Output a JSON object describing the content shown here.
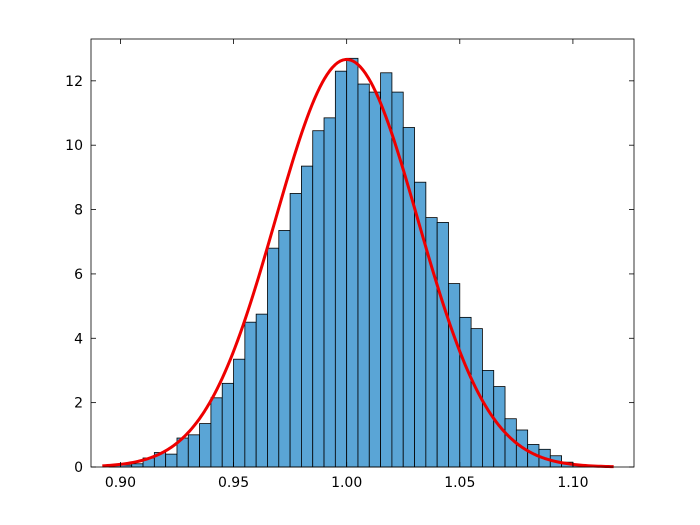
{
  "chart_data": {
    "type": "bar",
    "title": "",
    "xlabel": "",
    "ylabel": "",
    "xlim": [
      0.887,
      1.127
    ],
    "ylim": [
      0,
      13.3
    ],
    "grid": false,
    "legend": "none",
    "bin_width": 0.005,
    "bins": [
      [
        0.895,
        0.05
      ],
      [
        0.9,
        0.06
      ],
      [
        0.905,
        0.1
      ],
      [
        0.91,
        0.28
      ],
      [
        0.915,
        0.45
      ],
      [
        0.92,
        0.4
      ],
      [
        0.925,
        0.9
      ],
      [
        0.93,
        1.0
      ],
      [
        0.935,
        1.35
      ],
      [
        0.94,
        2.15
      ],
      [
        0.945,
        2.6
      ],
      [
        0.95,
        3.35
      ],
      [
        0.955,
        4.5
      ],
      [
        0.96,
        4.75
      ],
      [
        0.965,
        6.8
      ],
      [
        0.97,
        7.35
      ],
      [
        0.975,
        8.5
      ],
      [
        0.98,
        9.35
      ],
      [
        0.985,
        10.45
      ],
      [
        0.99,
        10.85
      ],
      [
        0.995,
        12.3
      ],
      [
        1.0,
        12.7
      ],
      [
        1.005,
        11.9
      ],
      [
        1.01,
        11.65
      ],
      [
        1.015,
        12.25
      ],
      [
        1.02,
        11.65
      ],
      [
        1.025,
        10.55
      ],
      [
        1.03,
        8.85
      ],
      [
        1.035,
        7.75
      ],
      [
        1.04,
        7.6
      ],
      [
        1.045,
        5.7
      ],
      [
        1.05,
        4.65
      ],
      [
        1.055,
        4.3
      ],
      [
        1.06,
        3.0
      ],
      [
        1.065,
        2.5
      ],
      [
        1.07,
        1.5
      ],
      [
        1.075,
        1.15
      ],
      [
        1.08,
        0.7
      ],
      [
        1.085,
        0.55
      ],
      [
        1.09,
        0.35
      ],
      [
        1.095,
        0.15
      ],
      [
        1.1,
        0.08
      ],
      [
        1.105,
        0.02
      ],
      [
        1.11,
        0.02
      ]
    ],
    "fit": {
      "type": "normal-pdf",
      "mean": 1.0,
      "std": 0.0315,
      "x_range": [
        0.892,
        1.118
      ],
      "color": "#ee0000"
    },
    "x_ticks": [
      {
        "value": 0.9,
        "label": "0.90"
      },
      {
        "value": 0.95,
        "label": "0.95"
      },
      {
        "value": 1.0,
        "label": "1.00"
      },
      {
        "value": 1.05,
        "label": "1.05"
      },
      {
        "value": 1.1,
        "label": "1.10"
      }
    ],
    "y_ticks": [
      {
        "value": 0,
        "label": "0"
      },
      {
        "value": 2,
        "label": "2"
      },
      {
        "value": 4,
        "label": "4"
      },
      {
        "value": 6,
        "label": "6"
      },
      {
        "value": 8,
        "label": "8"
      },
      {
        "value": 10,
        "label": "10"
      },
      {
        "value": 12,
        "label": "12"
      }
    ],
    "bar_color": "#5aa5d6",
    "edge_color": "#000000"
  }
}
